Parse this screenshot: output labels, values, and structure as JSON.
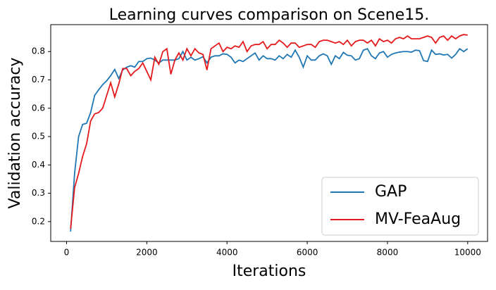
{
  "chart_data": {
    "type": "line",
    "title": "Learning curves comparison on Scene15.",
    "xlabel": "Iterations",
    "ylabel": "Validation accuracy",
    "x": [
      100,
      200,
      300,
      400,
      500,
      600,
      700,
      800,
      900,
      1000,
      1100,
      1200,
      1300,
      1400,
      1500,
      1600,
      1700,
      1800,
      1900,
      2000,
      2100,
      2200,
      2300,
      2400,
      2500,
      2600,
      2700,
      2800,
      2900,
      3000,
      3100,
      3200,
      3300,
      3400,
      3500,
      3600,
      3700,
      3800,
      3900,
      4000,
      4100,
      4200,
      4300,
      4400,
      4500,
      4600,
      4700,
      4800,
      4900,
      5000,
      5100,
      5200,
      5300,
      5400,
      5500,
      5600,
      5700,
      5800,
      5900,
      6000,
      6100,
      6200,
      6300,
      6400,
      6500,
      6600,
      6700,
      6800,
      6900,
      7000,
      7100,
      7200,
      7300,
      7400,
      7500,
      7600,
      7700,
      7800,
      7900,
      8000,
      8100,
      8200,
      8300,
      8400,
      8500,
      8600,
      8700,
      8800,
      8900,
      9000,
      9100,
      9200,
      9300,
      9400,
      9500,
      9600,
      9700,
      9800,
      9900,
      10000
    ],
    "series": [
      {
        "name": "GAP",
        "color": "#1f77b4",
        "values": [
          0.165,
          0.37,
          0.5,
          0.543,
          0.547,
          0.585,
          0.645,
          0.665,
          0.683,
          0.697,
          0.715,
          0.737,
          0.705,
          0.735,
          0.745,
          0.75,
          0.745,
          0.765,
          0.765,
          0.775,
          0.777,
          0.77,
          0.76,
          0.77,
          0.77,
          0.77,
          0.77,
          0.775,
          0.8,
          0.77,
          0.78,
          0.77,
          0.775,
          0.782,
          0.76,
          0.78,
          0.785,
          0.785,
          0.792,
          0.79,
          0.78,
          0.76,
          0.77,
          0.765,
          0.775,
          0.785,
          0.795,
          0.77,
          0.785,
          0.775,
          0.775,
          0.77,
          0.785,
          0.775,
          0.79,
          0.78,
          0.805,
          0.78,
          0.745,
          0.785,
          0.77,
          0.77,
          0.785,
          0.792,
          0.785,
          0.755,
          0.785,
          0.775,
          0.797,
          0.787,
          0.785,
          0.77,
          0.775,
          0.805,
          0.81,
          0.785,
          0.775,
          0.795,
          0.8,
          0.78,
          0.79,
          0.795,
          0.798,
          0.8,
          0.8,
          0.798,
          0.805,
          0.803,
          0.768,
          0.765,
          0.805,
          0.79,
          0.792,
          0.788,
          0.79,
          0.777,
          0.79,
          0.81,
          0.8,
          0.81
        ]
      },
      {
        "name": "MV-FeaAug",
        "color": "#e41a1c",
        "values": [
          0.175,
          0.32,
          0.37,
          0.43,
          0.475,
          0.555,
          0.58,
          0.585,
          0.6,
          0.645,
          0.69,
          0.64,
          0.685,
          0.74,
          0.74,
          0.715,
          0.73,
          0.74,
          0.76,
          0.73,
          0.7,
          0.78,
          0.755,
          0.8,
          0.81,
          0.72,
          0.77,
          0.795,
          0.77,
          0.81,
          0.785,
          0.81,
          0.795,
          0.79,
          0.735,
          0.81,
          0.82,
          0.83,
          0.8,
          0.815,
          0.81,
          0.82,
          0.815,
          0.835,
          0.8,
          0.82,
          0.825,
          0.825,
          0.835,
          0.81,
          0.825,
          0.825,
          0.84,
          0.83,
          0.815,
          0.83,
          0.83,
          0.815,
          0.82,
          0.825,
          0.825,
          0.815,
          0.835,
          0.84,
          0.84,
          0.835,
          0.83,
          0.835,
          0.825,
          0.84,
          0.82,
          0.835,
          0.84,
          0.84,
          0.83,
          0.84,
          0.82,
          0.845,
          0.835,
          0.84,
          0.83,
          0.845,
          0.85,
          0.845,
          0.855,
          0.845,
          0.845,
          0.845,
          0.85,
          0.855,
          0.85,
          0.83,
          0.85,
          0.855,
          0.84,
          0.855,
          0.845,
          0.855,
          0.86,
          0.858
        ]
      }
    ],
    "xlim": [
      -395,
      10495
    ],
    "ylim": [
      0.13,
      0.895
    ],
    "xticks": [
      0,
      2000,
      4000,
      6000,
      8000,
      10000
    ],
    "yticks": [
      0.2,
      0.3,
      0.4,
      0.5,
      0.6,
      0.7,
      0.8
    ],
    "grid": false,
    "legend": "lower right"
  }
}
